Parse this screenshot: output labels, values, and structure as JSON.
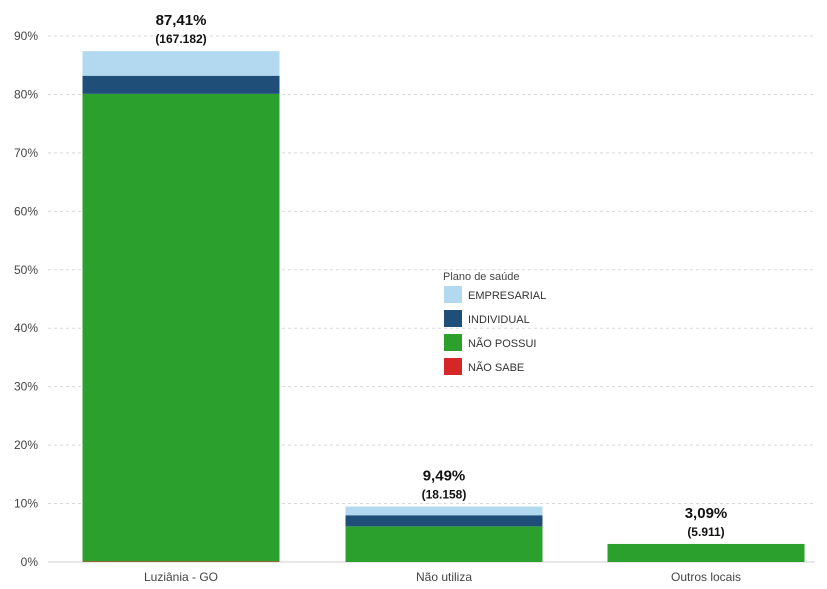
{
  "chart_data": {
    "type": "bar",
    "stacked": true,
    "categories": [
      "Luziânia - GO",
      "Não utiliza",
      "Outros locais"
    ],
    "series": [
      {
        "name": "NÃO SABE",
        "color": "#d62728",
        "values": [
          0.1,
          0.0,
          0.0
        ]
      },
      {
        "name": "NÃO POSSUI",
        "color": "#2ca02c",
        "values": [
          80.0,
          6.1,
          3.09
        ]
      },
      {
        "name": "INDIVIDUAL",
        "color": "#1f4e79",
        "values": [
          3.1,
          1.9,
          0.0
        ]
      },
      {
        "name": "EMPRESARIAL",
        "color": "#b3d9f0",
        "values": [
          4.21,
          1.49,
          0.0
        ]
      }
    ],
    "totals": [
      {
        "percent": "87,41%",
        "count": "(167.182)",
        "value": 87.41
      },
      {
        "percent": "9,49%",
        "count": "(18.158)",
        "value": 9.49
      },
      {
        "percent": "3,09%",
        "count": "(5.911)",
        "value": 3.09
      }
    ],
    "y_ticks": [
      0,
      10,
      20,
      30,
      40,
      50,
      60,
      70,
      80,
      90
    ],
    "y_tick_labels": [
      "0%",
      "10%",
      "20%",
      "30%",
      "40%",
      "50%",
      "60%",
      "70%",
      "80%",
      "90%"
    ],
    "ylim": [
      0,
      90
    ],
    "grid": true,
    "legend": {
      "title": "Plano de saúde",
      "placement": "center",
      "entries": [
        "EMPRESARIAL",
        "INDIVIDUAL",
        "NÃO POSSUI",
        "NÃO SABE"
      ]
    }
  }
}
